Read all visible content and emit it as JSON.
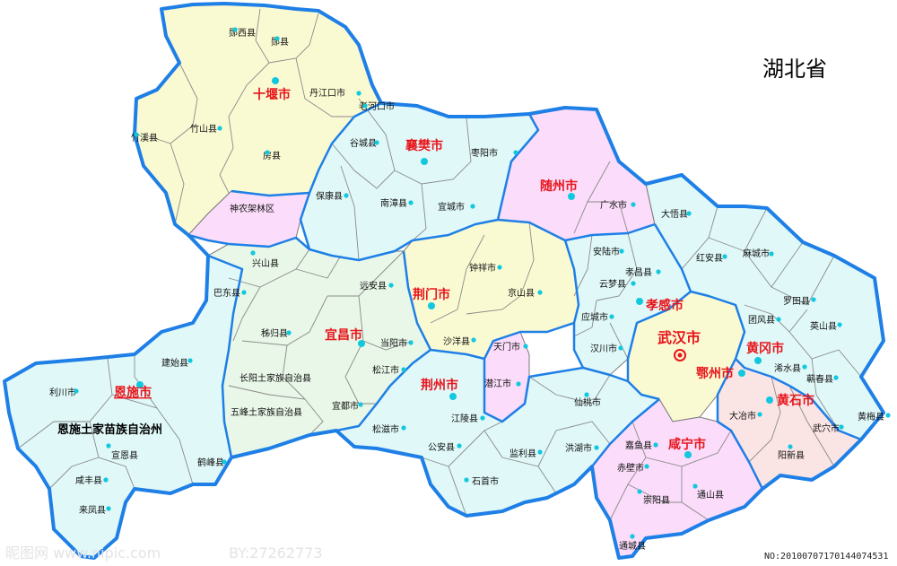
{
  "title": "湖北省",
  "colors": {
    "outline": "#1e7fe6",
    "city_label": "#e8141a",
    "county_dot": "#11c8de",
    "shiyan_region": "#fafad2",
    "xiangyang_region": "#e0f8f8",
    "suizhou_region": "#fbdcfa",
    "shennongjia_region": "#fbdcfa",
    "jingmen_region": "#fafad2",
    "xiaogan_region": "#e0f8f8",
    "wuhan_region": "#fafad2",
    "huanggang_region": "#e0f8f8",
    "huangshi_region": "#fbe4e4",
    "enshi_region": "#e0f8f8",
    "yichang_region": "#e8f7e8",
    "jingzhou_region": "#e0f8f8",
    "qianjiang_region": "#fbdcfa",
    "xianning_region": "#fbdcfa"
  },
  "cities": [
    {
      "id": "shiyan",
      "name": "十堰市"
    },
    {
      "id": "xiangyang",
      "name": "襄樊市"
    },
    {
      "id": "suizhou",
      "name": "随州市"
    },
    {
      "id": "jingmen",
      "name": "荆门市"
    },
    {
      "id": "xiaogan",
      "name": "孝感市"
    },
    {
      "id": "wuhan",
      "name": "武汉市"
    },
    {
      "id": "huanggang",
      "name": "黄冈市"
    },
    {
      "id": "ezhou",
      "name": "鄂州市"
    },
    {
      "id": "huangshi",
      "name": "黄石市"
    },
    {
      "id": "yichang",
      "name": "宜昌市"
    },
    {
      "id": "jingzhou",
      "name": "荆州市"
    },
    {
      "id": "enshi",
      "name": "恩施市"
    },
    {
      "id": "xianning",
      "name": "咸宁市"
    }
  ],
  "prefecture_label": "恩施土家苗族自治州",
  "counties": [
    "郧西县",
    "郧县",
    "丹江口市",
    "老河口市",
    "竹溪县",
    "竹山县",
    "房县",
    "谷城县",
    "枣阳市",
    "保康县",
    "南漳县",
    "宜城市",
    "广水市",
    "大悟县",
    "神农架林区",
    "兴山县",
    "钟祥市",
    "安陆市",
    "孝昌县",
    "红安县",
    "麻城市",
    "巴东县",
    "远安县",
    "京山县",
    "云梦县",
    "罗田县",
    "团风县",
    "英山县",
    "秭归县",
    "当阳市",
    "沙洋县",
    "天门市",
    "应城市",
    "汉川市",
    "浠水县",
    "蕲春县",
    "建始县",
    "长阳土家族自治县",
    "松江市",
    "潜江市",
    "仙桃市",
    "大冶市",
    "黄梅县",
    "利川市",
    "五峰土家族自治县",
    "宜都市",
    "江陵县",
    "武穴市",
    "松滋市",
    "公安县",
    "监利县",
    "洪湖市",
    "嘉鱼县",
    "阳新县",
    "宣恩县",
    "鹤峰县",
    "赤壁市",
    "咸丰县",
    "石首市",
    "崇阳县",
    "通山县",
    "来凤县",
    "通城县"
  ],
  "watermark": {
    "site": "昵图网 www.nipic.com",
    "by": "BY:27262773",
    "no": "NO:20100707170144074531"
  }
}
